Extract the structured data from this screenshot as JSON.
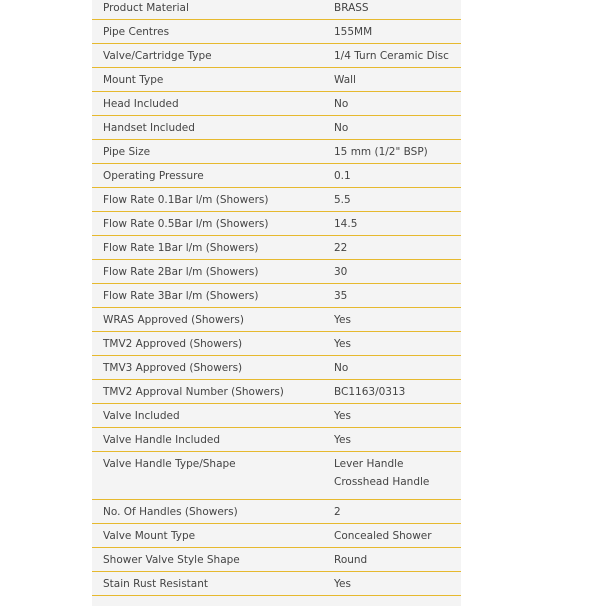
{
  "specs": [
    {
      "label": "Product Material",
      "values": [
        "BRASS"
      ]
    },
    {
      "label": "Pipe Centres",
      "values": [
        "155MM"
      ]
    },
    {
      "label": "Valve/Cartridge Type",
      "values": [
        "1/4 Turn Ceramic Disc"
      ]
    },
    {
      "label": "Mount Type",
      "values": [
        "Wall"
      ]
    },
    {
      "label": "Head Included",
      "values": [
        "No"
      ]
    },
    {
      "label": "Handset Included",
      "values": [
        "No"
      ]
    },
    {
      "label": "Pipe Size",
      "values": [
        "15 mm (1/2\" BSP)"
      ]
    },
    {
      "label": "Operating Pressure",
      "values": [
        "0.1"
      ]
    },
    {
      "label": "Flow Rate 0.1Bar l/m (Showers)",
      "values": [
        "5.5"
      ]
    },
    {
      "label": "Flow Rate 0.5Bar l/m (Showers)",
      "values": [
        "14.5"
      ]
    },
    {
      "label": "Flow Rate 1Bar l/m (Showers)",
      "values": [
        "22"
      ]
    },
    {
      "label": "Flow Rate 2Bar l/m (Showers)",
      "values": [
        "30"
      ]
    },
    {
      "label": "Flow Rate 3Bar l/m (Showers)",
      "values": [
        "35"
      ]
    },
    {
      "label": "WRAS Approved (Showers)",
      "values": [
        "Yes"
      ]
    },
    {
      "label": "TMV2 Approved (Showers)",
      "values": [
        "Yes"
      ]
    },
    {
      "label": "TMV3 Approved (Showers)",
      "values": [
        "No"
      ]
    },
    {
      "label": "TMV2 Approval Number (Showers)",
      "values": [
        "BC1163/0313"
      ]
    },
    {
      "label": "Valve Included",
      "values": [
        "Yes"
      ]
    },
    {
      "label": "Valve Handle Included",
      "values": [
        "Yes"
      ]
    },
    {
      "label": "Valve Handle Type/Shape",
      "values": [
        "Lever Handle",
        "Crosshead Handle"
      ]
    },
    {
      "label": "No. Of Handles (Showers)",
      "values": [
        "2"
      ]
    },
    {
      "label": "Valve Mount Type",
      "values": [
        "Concealed Shower"
      ]
    },
    {
      "label": "Shower Valve Style Shape",
      "values": [
        "Round"
      ]
    },
    {
      "label": "Stain Rust Resistant",
      "values": [
        "Yes"
      ]
    }
  ],
  "colors": {
    "divider": "#e6b92e",
    "panel": "#f4f4f4",
    "text": "#444444"
  }
}
